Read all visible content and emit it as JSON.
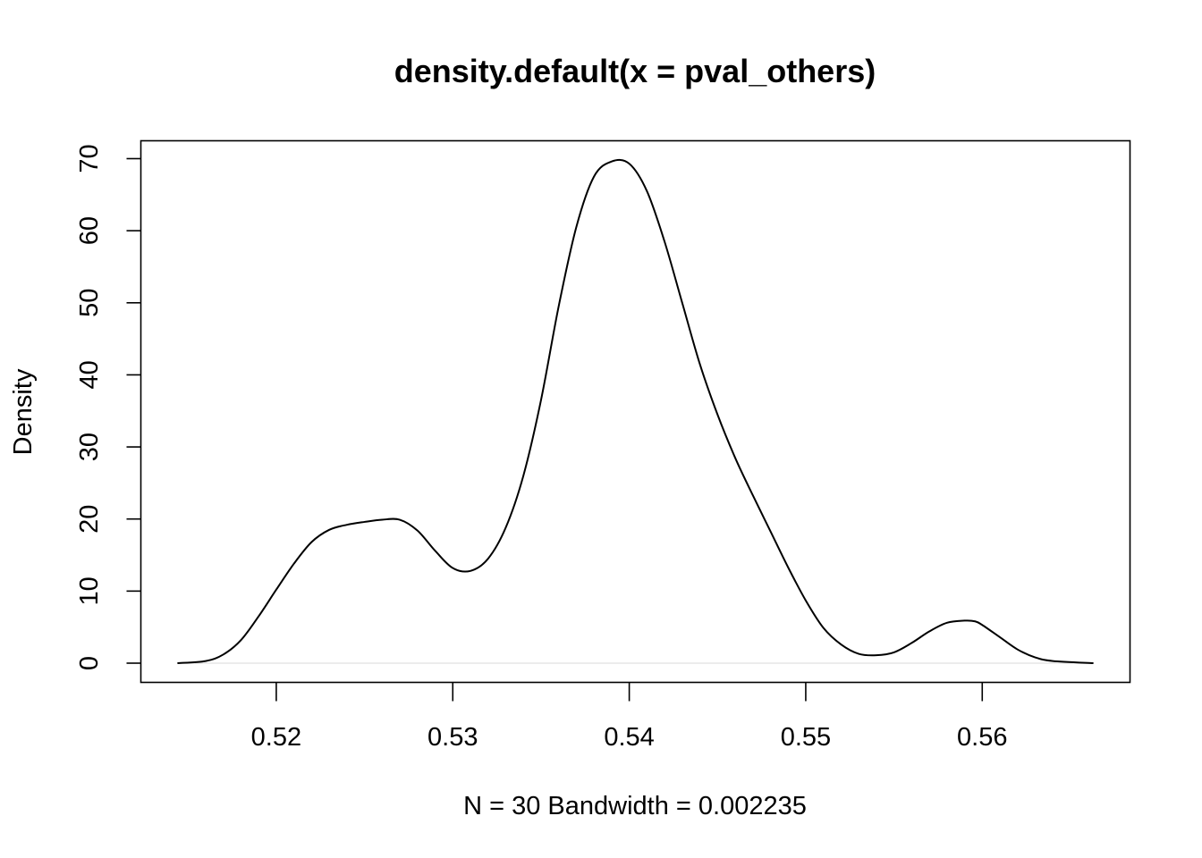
{
  "chart_data": {
    "type": "line",
    "title": "density.default(x = pval_others)",
    "xlabel": "N = 30   Bandwidth = 0.002235",
    "ylabel": "Density",
    "xlim": [
      0.5144,
      0.5663
    ],
    "ylim": [
      0,
      70
    ],
    "x_ticks": [
      0.52,
      0.53,
      0.54,
      0.55,
      0.56
    ],
    "x_tick_labels": [
      "0.52",
      "0.53",
      "0.54",
      "0.55",
      "0.56"
    ],
    "y_ticks": [
      0,
      10,
      20,
      30,
      40,
      50,
      60,
      70
    ],
    "y_tick_labels": [
      "0",
      "10",
      "20",
      "30",
      "40",
      "50",
      "60",
      "70"
    ],
    "grid": false,
    "baseline": 0,
    "colors": {
      "line": "#000000",
      "baseline": "#e0e0e0",
      "frame": "#000000"
    },
    "series": [
      {
        "x": [
          0.5144,
          0.516,
          0.517,
          0.518,
          0.519,
          0.52,
          0.521,
          0.522,
          0.523,
          0.524,
          0.525,
          0.526,
          0.527,
          0.528,
          0.529,
          0.53,
          0.531,
          0.532,
          0.533,
          0.534,
          0.535,
          0.536,
          0.537,
          0.538,
          0.539,
          0.54,
          0.541,
          0.542,
          0.543,
          0.544,
          0.545,
          0.546,
          0.547,
          0.548,
          0.549,
          0.55,
          0.551,
          0.552,
          0.553,
          0.554,
          0.555,
          0.556,
          0.557,
          0.558,
          0.559,
          0.5596,
          0.56,
          0.561,
          0.562,
          0.563,
          0.564,
          0.5663
        ],
        "y": [
          0.0,
          0.3,
          1.2,
          3.2,
          6.5,
          10.2,
          13.8,
          16.8,
          18.5,
          19.2,
          19.6,
          19.9,
          19.9,
          18.4,
          15.6,
          13.2,
          12.8,
          14.5,
          18.8,
          26.0,
          36.5,
          49.5,
          60.5,
          67.5,
          69.6,
          69.3,
          65.5,
          58.5,
          50.0,
          41.5,
          34.5,
          28.5,
          23.3,
          18.3,
          13.3,
          8.7,
          4.9,
          2.6,
          1.3,
          1.1,
          1.5,
          2.8,
          4.4,
          5.6,
          5.9,
          5.8,
          5.3,
          3.6,
          1.9,
          0.8,
          0.3,
          0.0
        ]
      }
    ]
  }
}
